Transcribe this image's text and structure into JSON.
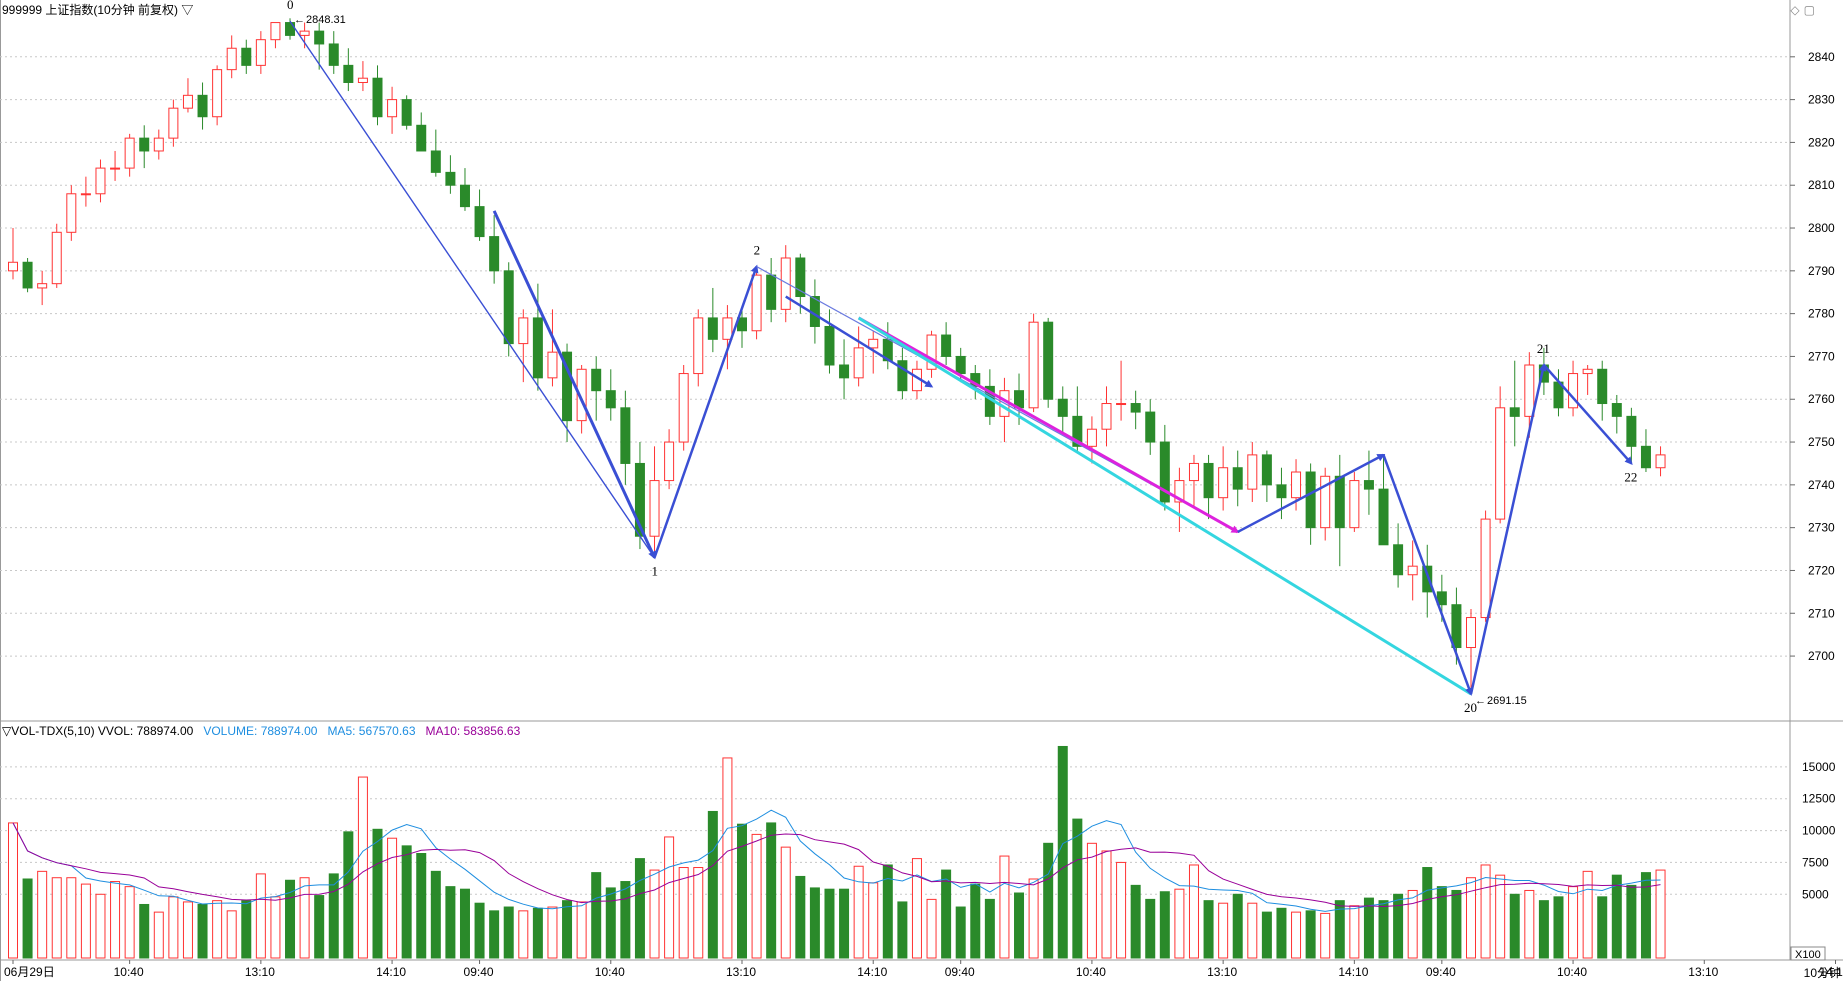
{
  "header": {
    "title": "999999 上证指数(10分钟 前复权) ▽",
    "restore_icon": "restore-icon",
    "maximize_icon": "maximize-icon"
  },
  "volume_header": {
    "label": "▽VOL-TDX(5,10)  VVOL: 788974.00",
    "volume": "VOLUME: 788974.00",
    "ma5": "MA5: 567570.63",
    "ma10": "MA10: 583856.63",
    "colors": {
      "volume": "#1e8ee0",
      "ma5": "#1e8ee0",
      "ma10": "#990099"
    }
  },
  "footer": {
    "timeframe": "10分钟",
    "multiplier": "X100"
  },
  "colors": {
    "up": "#ff3333",
    "down": "#2a8a2a",
    "wave": "#3a4fd4",
    "cyan": "#34d6e0",
    "magenta": "#dd22dd",
    "grid": "#c8c8c8"
  },
  "chart_data": [
    {
      "type": "candlestick",
      "y_axis": {
        "range": [
          2686,
          2850
        ],
        "ticks": [
          2700,
          2710,
          2720,
          2730,
          2740,
          2750,
          2760,
          2770,
          2780,
          2790,
          2800,
          2810,
          2820,
          2830,
          2840
        ],
        "grid": true
      },
      "x_axis_labels": [
        {
          "i": 0,
          "t": "06月29日"
        },
        {
          "i": 8,
          "t": "10:40"
        },
        {
          "i": 17,
          "t": "13:10"
        },
        {
          "i": 26,
          "t": "14:10"
        },
        {
          "i": 32,
          "t": "09:40"
        },
        {
          "i": 41,
          "t": "10:40"
        },
        {
          "i": 50,
          "t": "13:10"
        },
        {
          "i": 59,
          "t": "14:10"
        },
        {
          "i": 65,
          "t": "09:40"
        },
        {
          "i": 74,
          "t": "10:40"
        },
        {
          "i": 83,
          "t": "13:10"
        },
        {
          "i": 92,
          "t": "14:10"
        },
        {
          "i": 98,
          "t": "09:40"
        },
        {
          "i": 107,
          "t": "10:40"
        },
        {
          "i": 116,
          "t": "13:10"
        },
        {
          "i": 125,
          "t": "14:10"
        },
        {
          "i": 131,
          "t": "09:40"
        },
        {
          "i": 140,
          "t": "10:40"
        },
        {
          "i": 149,
          "t": "13:10"
        },
        {
          "i": 158,
          "t": "14:10"
        },
        {
          "i": 164,
          "t": "09:40"
        },
        {
          "i": 173,
          "t": "10:40"
        },
        {
          "i": 182,
          "t": "13:10"
        },
        {
          "i": 191,
          "t": "14:10"
        },
        {
          "i": 197,
          "t": "09:40"
        }
      ],
      "candles": [
        [
          2790,
          2800,
          2788,
          2792
        ],
        [
          2792,
          2793,
          2785,
          2786
        ],
        [
          2786,
          2790,
          2782,
          2787
        ],
        [
          2787,
          2801,
          2786,
          2799
        ],
        [
          2799,
          2810,
          2797,
          2808
        ],
        [
          2808,
          2812,
          2805,
          2808
        ],
        [
          2808,
          2816,
          2806,
          2814
        ],
        [
          2814,
          2818,
          2811,
          2814
        ],
        [
          2814,
          2822,
          2812,
          2821
        ],
        [
          2821,
          2824,
          2814,
          2818
        ],
        [
          2818,
          2823,
          2816,
          2821
        ],
        [
          2821,
          2830,
          2819,
          2828
        ],
        [
          2828,
          2835,
          2827,
          2831
        ],
        [
          2831,
          2834,
          2823,
          2826
        ],
        [
          2826,
          2838,
          2824,
          2837
        ],
        [
          2837,
          2845,
          2835,
          2842
        ],
        [
          2842,
          2844,
          2836,
          2838
        ],
        [
          2838,
          2846,
          2836,
          2844
        ],
        [
          2844,
          2848,
          2842,
          2848
        ],
        [
          2848,
          2849,
          2844,
          2845
        ],
        [
          2845,
          2848,
          2842,
          2846
        ],
        [
          2846,
          2848,
          2837,
          2843
        ],
        [
          2843,
          2846,
          2836,
          2838
        ],
        [
          2838,
          2842,
          2832,
          2834
        ],
        [
          2834,
          2839,
          2832,
          2835
        ],
        [
          2835,
          2838,
          2824,
          2826
        ],
        [
          2826,
          2833,
          2822,
          2830
        ],
        [
          2830,
          2831,
          2823,
          2824
        ],
        [
          2824,
          2827,
          2818,
          2818
        ],
        [
          2818,
          2823,
          2812,
          2813
        ],
        [
          2813,
          2817,
          2808,
          2810
        ],
        [
          2810,
          2814,
          2804,
          2805
        ],
        [
          2805,
          2809,
          2797,
          2798
        ],
        [
          2798,
          2803,
          2787,
          2790
        ],
        [
          2790,
          2792,
          2770,
          2773
        ],
        [
          2773,
          2781,
          2764,
          2779
        ],
        [
          2779,
          2787,
          2762,
          2765
        ],
        [
          2765,
          2781,
          2763,
          2771
        ],
        [
          2771,
          2773,
          2750,
          2755
        ],
        [
          2755,
          2768,
          2752,
          2767
        ],
        [
          2767,
          2770,
          2755,
          2762
        ],
        [
          2762,
          2767,
          2755,
          2758
        ],
        [
          2758,
          2762,
          2740,
          2745
        ],
        [
          2745,
          2750,
          2725,
          2728
        ],
        [
          2728,
          2749,
          2723,
          2741
        ],
        [
          2741,
          2753,
          2739,
          2750
        ],
        [
          2750,
          2768,
          2748,
          2766
        ],
        [
          2766,
          2781,
          2763,
          2779
        ],
        [
          2779,
          2786,
          2771,
          2774
        ],
        [
          2774,
          2782,
          2767,
          2779
        ],
        [
          2779,
          2781,
          2772,
          2776
        ],
        [
          2776,
          2791,
          2774,
          2789
        ],
        [
          2789,
          2793,
          2778,
          2781
        ],
        [
          2781,
          2796,
          2778,
          2793
        ],
        [
          2793,
          2794,
          2780,
          2784
        ],
        [
          2784,
          2788,
          2773,
          2777
        ],
        [
          2777,
          2781,
          2766,
          2768
        ],
        [
          2768,
          2774,
          2760,
          2765
        ],
        [
          2765,
          2777,
          2763,
          2772
        ],
        [
          2772,
          2776,
          2766,
          2774
        ],
        [
          2774,
          2778,
          2767,
          2769
        ],
        [
          2769,
          2772,
          2760,
          2762
        ],
        [
          2762,
          2769,
          2760,
          2767
        ],
        [
          2767,
          2776,
          2765,
          2775
        ],
        [
          2775,
          2778,
          2768,
          2770
        ],
        [
          2770,
          2772,
          2764,
          2766
        ],
        [
          2766,
          2768,
          2760,
          2763
        ],
        [
          2763,
          2767,
          2754,
          2756
        ],
        [
          2756,
          2765,
          2750,
          2762
        ],
        [
          2762,
          2766,
          2754,
          2758
        ],
        [
          2758,
          2780,
          2757,
          2778
        ],
        [
          2778,
          2779,
          2758,
          2760
        ],
        [
          2760,
          2763,
          2752,
          2756
        ],
        [
          2756,
          2763,
          2748,
          2749
        ],
        [
          2749,
          2756,
          2745,
          2753
        ],
        [
          2753,
          2763,
          2749,
          2759
        ],
        [
          2759,
          2769,
          2755,
          2759
        ],
        [
          2759,
          2762,
          2753,
          2757
        ],
        [
          2757,
          2760,
          2747,
          2750
        ],
        [
          2750,
          2754,
          2734,
          2736
        ],
        [
          2736,
          2744,
          2729,
          2741
        ],
        [
          2741,
          2747,
          2735,
          2745
        ],
        [
          2745,
          2747,
          2732,
          2737
        ],
        [
          2737,
          2749,
          2734,
          2744
        ],
        [
          2744,
          2748,
          2735,
          2739
        ],
        [
          2739,
          2750,
          2736,
          2747
        ],
        [
          2747,
          2748,
          2736,
          2740
        ],
        [
          2740,
          2744,
          2732,
          2737
        ],
        [
          2737,
          2746,
          2734,
          2743
        ],
        [
          2743,
          2745,
          2726,
          2730
        ],
        [
          2730,
          2744,
          2727,
          2742
        ],
        [
          2742,
          2747,
          2721,
          2730
        ],
        [
          2730,
          2743,
          2729,
          2741
        ],
        [
          2741,
          2748,
          2733,
          2739
        ],
        [
          2739,
          2747,
          2727,
          2726
        ],
        [
          2726,
          2731,
          2716,
          2719
        ],
        [
          2719,
          2727,
          2713,
          2721
        ],
        [
          2721,
          2726,
          2709,
          2715
        ],
        [
          2715,
          2719,
          2708,
          2712
        ],
        [
          2712,
          2716,
          2698,
          2702
        ],
        [
          2702,
          2711,
          2691,
          2709
        ],
        [
          2709,
          2734,
          2708,
          2732
        ],
        [
          2732,
          2763,
          2731,
          2758
        ],
        [
          2758,
          2769,
          2749,
          2756
        ],
        [
          2756,
          2771,
          2751,
          2768
        ],
        [
          2768,
          2772,
          2761,
          2764
        ],
        [
          2764,
          2767,
          2756,
          2758
        ],
        [
          2758,
          2769,
          2756,
          2766
        ],
        [
          2766,
          2768,
          2761,
          2767
        ],
        [
          2767,
          2769,
          2755,
          2759
        ],
        [
          2759,
          2761,
          2752,
          2756
        ],
        [
          2756,
          2758,
          2745,
          2749
        ],
        [
          2749,
          2753,
          2743,
          2744
        ],
        [
          2744,
          2749,
          2742,
          2747
        ]
      ],
      "wave_labels": [
        {
          "text": "0",
          "i": 19,
          "price": 2848.31
        },
        {
          "text": "1",
          "i": 44,
          "price": 2723.0
        },
        {
          "text": "2",
          "i": 51,
          "price": 2791.0
        },
        {
          "text": "20",
          "i": 100,
          "price": 2691.15
        },
        {
          "text": "21",
          "i": 105,
          "price": 2768.0
        },
        {
          "text": "22",
          "i": 111,
          "price": 2745.0
        }
      ],
      "price_annotations": [
        {
          "text": "2848.31",
          "i": 19,
          "price": 2848.31
        },
        {
          "text": "2691.15",
          "i": 100,
          "price": 2691.15
        }
      ]
    },
    {
      "type": "bar",
      "title": "VOL-TDX(5,10)",
      "y_axis": {
        "range": [
          0,
          17500
        ],
        "ticks": [
          5000,
          7500,
          10000,
          12500,
          15000
        ],
        "unit_label": "X100"
      },
      "volumes": [
        10600,
        6200,
        6800,
        6300,
        6300,
        5800,
        5000,
        6000,
        5600,
        4200,
        3600,
        4800,
        4400,
        4200,
        4500,
        3700,
        4500,
        6600,
        4800,
        6100,
        6300,
        4900,
        6600,
        9900,
        14200,
        10100,
        9400,
        8800,
        8200,
        6800,
        5600,
        5400,
        4300,
        3700,
        4000,
        3700,
        3900,
        4000,
        4500,
        4400,
        6700,
        5500,
        6000,
        7800,
        6900,
        9500,
        7100,
        7100,
        11500,
        15700,
        10500,
        9700,
        10600,
        8700,
        6400,
        5500,
        5400,
        5400,
        7200,
        5900,
        7300,
        4400,
        7800,
        4600,
        6900,
        4000,
        5800,
        4600,
        8000,
        5100,
        6200,
        9000,
        16600,
        10900,
        9000,
        8400,
        7500,
        5700,
        4600,
        5200,
        5400,
        7300,
        4500,
        4300,
        5000,
        4300,
        3600,
        3900,
        3600,
        3700,
        3500,
        4500,
        4100,
        4700,
        4500,
        5000,
        5300,
        7100,
        5600,
        5300,
        6300,
        7300,
        6500,
        5000,
        5300,
        4500,
        4800,
        5600,
        6800,
        4800,
        6500,
        5700,
        6700,
        6900
      ]
    }
  ]
}
